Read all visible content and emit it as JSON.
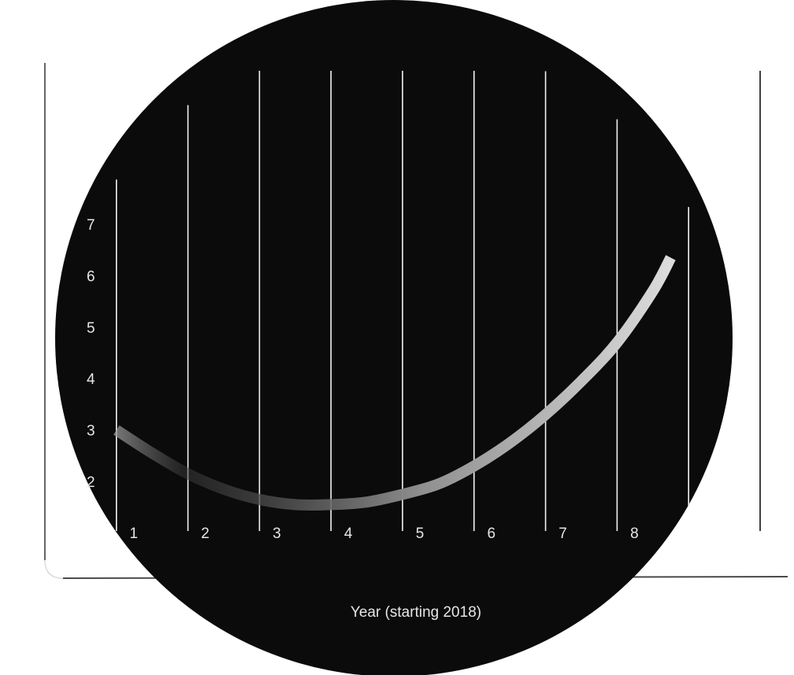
{
  "chart_data": {
    "type": "line",
    "xlabel": "Year (starting 2018)",
    "ylabel": "",
    "x_ticks": [
      "1",
      "2",
      "3",
      "4",
      "5",
      "6",
      "7",
      "8"
    ],
    "y_ticks": [
      "2",
      "3",
      "4",
      "5",
      "6",
      "7"
    ],
    "xlim": [
      0,
      10
    ],
    "ylim": [
      1,
      8
    ],
    "grid": "vertical",
    "series": [
      {
        "x": [
          1,
          1.5,
          2,
          2.5,
          3,
          3.5,
          4,
          4.5,
          5,
          5.5,
          6,
          6.5,
          7,
          7.5,
          8,
          8.5,
          8.75
        ],
        "values": [
          3.0,
          2.55,
          2.15,
          1.85,
          1.65,
          1.55,
          1.55,
          1.6,
          1.75,
          1.95,
          2.3,
          2.75,
          3.3,
          3.95,
          4.7,
          5.7,
          6.35
        ]
      }
    ],
    "colors": {
      "disc": "#0b0b0b",
      "line": "#c9c9c9",
      "grid": "#f2f2f2",
      "text": "#e6e6e6"
    }
  }
}
